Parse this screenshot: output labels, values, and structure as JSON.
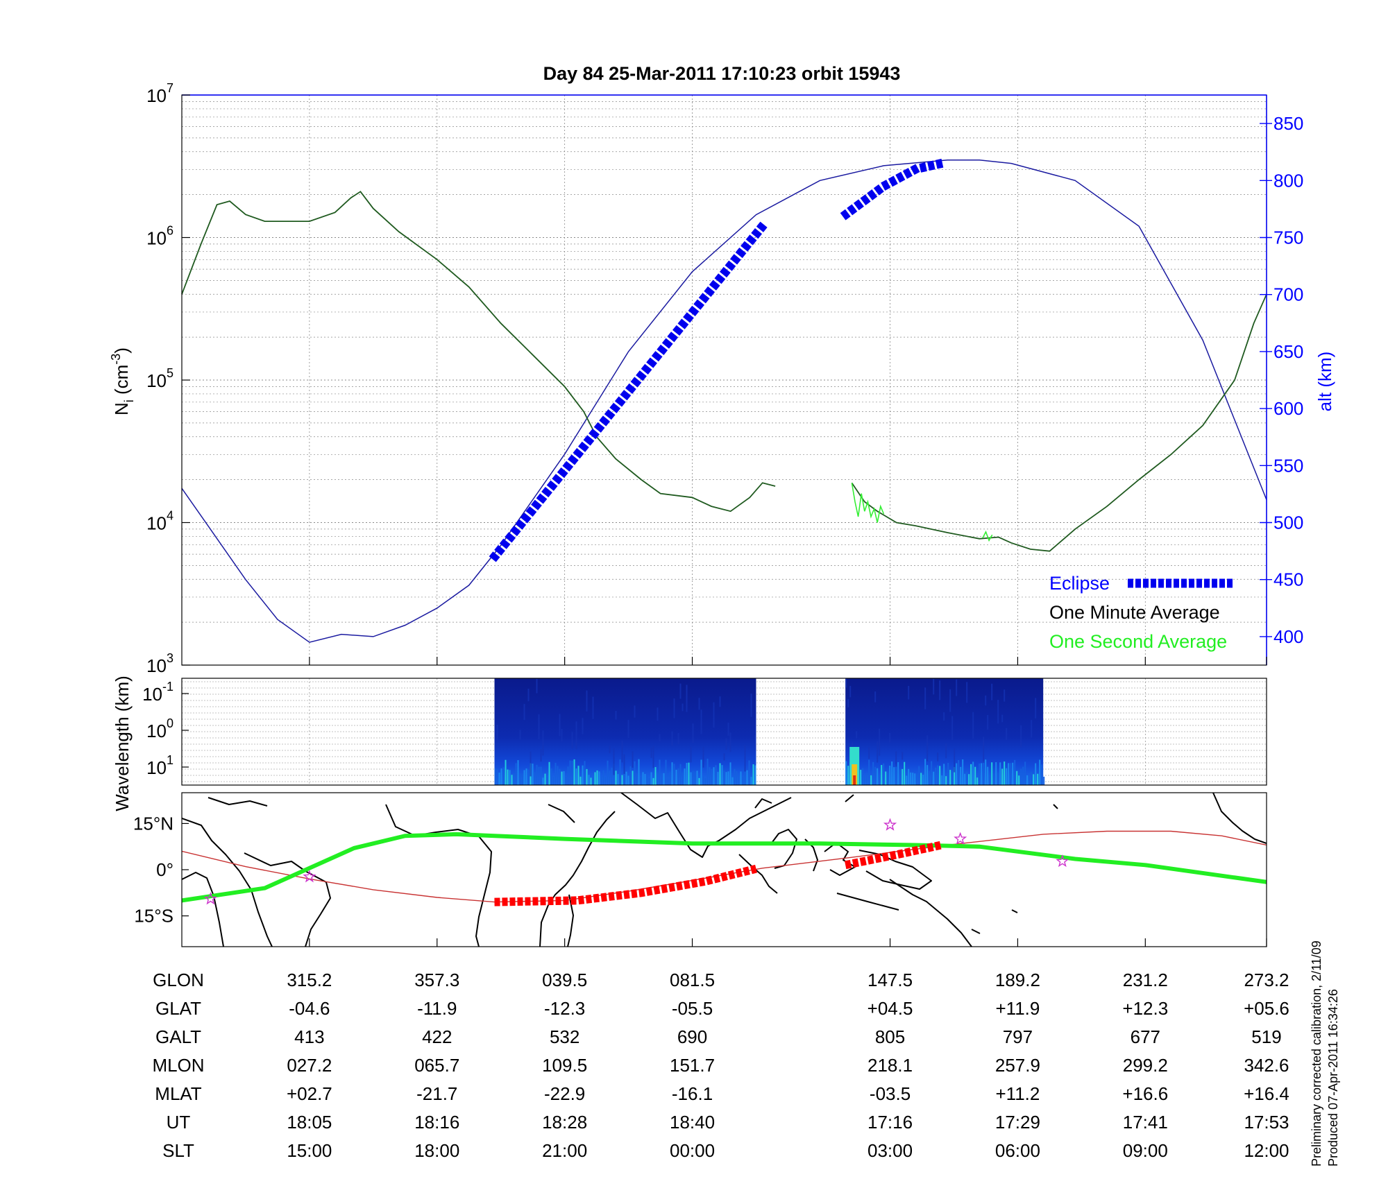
{
  "title": "Day 84  25-Mar-2011 17:10:23   orbit 15943",
  "colors": {
    "axis": "#000000",
    "grid": "#888888",
    "blue": "#0000ff",
    "alt_line": "#1a1aa0",
    "density_dark": "#1f5a1f",
    "density_light": "#33ee33",
    "eclipse": "#0000ee",
    "track_green": "#22ee22",
    "track_red": "#ff0000",
    "orbit_red": "#c83232",
    "star": "#cc33cc"
  },
  "chart_data": [
    {
      "id": "density",
      "type": "line",
      "ylabel_main": "N",
      "ylabel_sub": "i",
      "ylabel_rest": " (cm",
      "ylabel_sup": "-3",
      "ylabel_end": ")",
      "y_scale": "log",
      "ylim": [
        1000,
        10000000
      ],
      "y_ticks": [
        {
          "value": 1000,
          "base": "10",
          "exp": "3"
        },
        {
          "value": 10000,
          "base": "10",
          "exp": "4"
        },
        {
          "value": 100000,
          "base": "10",
          "exp": "5"
        },
        {
          "value": 1000000,
          "base": "10",
          "exp": "6"
        },
        {
          "value": 10000000,
          "base": "10",
          "exp": "7"
        }
      ],
      "y2label": "alt (km)",
      "y2lim": [
        375,
        875
      ],
      "y2_ticks": [
        400,
        450,
        500,
        550,
        600,
        650,
        700,
        750,
        800,
        850
      ],
      "xlim": [
        0,
        17
      ],
      "x_ticks": [
        2,
        4,
        6,
        8,
        11.1,
        13.1,
        15.1,
        17
      ],
      "grid": true,
      "series": [
        {
          "name": "One Minute Average",
          "segments": [
            [
              [
                0,
                400000
              ],
              [
                0.3,
                900000
              ],
              [
                0.55,
                1700000
              ],
              [
                0.75,
                1800000
              ],
              [
                1,
                1450000
              ],
              [
                1.3,
                1300000
              ],
              [
                2,
                1300000
              ],
              [
                2.4,
                1500000
              ],
              [
                2.65,
                1900000
              ],
              [
                2.8,
                2100000
              ],
              [
                3.0,
                1600000
              ],
              [
                3.4,
                1100000
              ],
              [
                4,
                700000
              ],
              [
                4.5,
                450000
              ],
              [
                5,
                250000
              ],
              [
                5.5,
                150000
              ],
              [
                6,
                90000
              ],
              [
                6.3,
                60000
              ],
              [
                6.5,
                40000
              ],
              [
                6.8,
                28000
              ],
              [
                7.2,
                20000
              ],
              [
                7.5,
                16000
              ],
              [
                8,
                15000
              ],
              [
                8.3,
                13000
              ],
              [
                8.6,
                12000
              ],
              [
                8.9,
                15000
              ],
              [
                9.1,
                19000
              ],
              [
                9.3,
                18000
              ]
            ],
            [
              [
                10.5,
                19000
              ],
              [
                10.7,
                14000
              ],
              [
                10.9,
                12000
              ],
              [
                11.2,
                10000
              ],
              [
                11.5,
                9500
              ],
              [
                12,
                8500
              ],
              [
                12.5,
                7700
              ],
              [
                12.8,
                7900
              ],
              [
                13,
                7200
              ],
              [
                13.3,
                6500
              ],
              [
                13.6,
                6300
              ],
              [
                14,
                9000
              ],
              [
                14.5,
                13000
              ],
              [
                15,
                20000
              ],
              [
                15.5,
                30000
              ],
              [
                16,
                48000
              ],
              [
                16.5,
                100000
              ],
              [
                16.8,
                250000
              ],
              [
                17,
                400000
              ]
            ]
          ]
        },
        {
          "name": "One Second Average",
          "segments": [
            [
              [
                10.5,
                19000
              ],
              [
                10.55,
                14000
              ],
              [
                10.6,
                11000
              ],
              [
                10.65,
                16000
              ],
              [
                10.7,
                12000
              ],
              [
                10.75,
                14000
              ],
              [
                10.8,
                11000
              ],
              [
                10.85,
                12500
              ],
              [
                10.9,
                10000
              ],
              [
                10.95,
                13000
              ],
              [
                11.0,
                11500
              ]
            ],
            [
              [
                12.55,
                7800
              ],
              [
                12.6,
                8600
              ],
              [
                12.65,
                7500
              ],
              [
                12.7,
                8200
              ]
            ]
          ]
        },
        {
          "name": "Eclipse",
          "segments": [
            [
              [
                4.9,
                470
              ],
              [
                9.1,
                760
              ]
            ],
            [
              [
                10.4,
                770
              ],
              [
                11.0,
                795
              ],
              [
                11.5,
                810
              ],
              [
                11.9,
                815
              ]
            ]
          ]
        }
      ],
      "altitude": [
        [
          0,
          530
        ],
        [
          0.5,
          490
        ],
        [
          1,
          450
        ],
        [
          1.5,
          415
        ],
        [
          2,
          395
        ],
        [
          2.5,
          402
        ],
        [
          3,
          400
        ],
        [
          3.5,
          410
        ],
        [
          4,
          425
        ],
        [
          4.5,
          445
        ],
        [
          5,
          480
        ],
        [
          6,
          560
        ],
        [
          7,
          650
        ],
        [
          8,
          720
        ],
        [
          9,
          770
        ],
        [
          10,
          800
        ],
        [
          11,
          813
        ],
        [
          12,
          818
        ],
        [
          12.5,
          818
        ],
        [
          13,
          815
        ],
        [
          14,
          800
        ],
        [
          15,
          760
        ],
        [
          16,
          660
        ],
        [
          16.5,
          590
        ],
        [
          17,
          520
        ]
      ],
      "legend": [
        {
          "label": "Eclipse",
          "color_key": "blue"
        },
        {
          "label": "One Minute Average",
          "color_key": "axis"
        },
        {
          "label": "One Second Average",
          "color_key": "track_green"
        }
      ],
      "legend_position": "bottom-right"
    },
    {
      "id": "spectrogram",
      "type": "heatmap",
      "ylabel": "Wavelength (km)",
      "y_ticks": [
        {
          "base": "10",
          "exp": "-1"
        },
        {
          "base": "10",
          "exp": "0"
        },
        {
          "base": "10",
          "exp": "1"
        }
      ],
      "data_ranges_x": [
        [
          4.9,
          9.0
        ],
        [
          10.4,
          13.5
        ]
      ],
      "grid": true
    },
    {
      "id": "map",
      "type": "line",
      "y_ticks": [
        "15°N",
        "0°",
        "15°S"
      ],
      "ylim": [
        -25,
        25
      ],
      "tracks": {
        "green": [
          [
            0,
            -10
          ],
          [
            1.3,
            -6
          ],
          [
            2.7,
            7
          ],
          [
            3.5,
            11
          ],
          [
            4.3,
            11.5
          ],
          [
            6,
            10
          ],
          [
            8,
            8.5
          ],
          [
            10,
            8.5
          ],
          [
            11.5,
            8
          ],
          [
            12.5,
            7.5
          ],
          [
            14,
            3.5
          ],
          [
            15.1,
            1.5
          ],
          [
            17,
            -4
          ]
        ],
        "orbit_red": [
          [
            0,
            6
          ],
          [
            1,
            1
          ],
          [
            2,
            -3
          ],
          [
            3,
            -6.5
          ],
          [
            4,
            -9
          ],
          [
            4.9,
            -10.5
          ],
          [
            6,
            -10
          ],
          [
            7,
            -7
          ],
          [
            8,
            -3.5
          ],
          [
            9.1,
            0.5
          ],
          [
            10.5,
            4
          ],
          [
            12,
            8
          ],
          [
            13.5,
            11.5
          ],
          [
            14.5,
            12.5
          ],
          [
            15.5,
            12.5
          ],
          [
            16.3,
            11
          ],
          [
            17,
            8
          ]
        ],
        "red_thick": [
          [
            [
              4.9,
              -10.5
            ],
            [
              6.2,
              -10
            ],
            [
              7.2,
              -7.5
            ],
            [
              8.2,
              -3.8
            ],
            [
              9.0,
              0.3
            ]
          ],
          [
            [
              10.4,
              1.5
            ],
            [
              11.3,
              5.3
            ],
            [
              11.9,
              8
            ]
          ]
        ]
      },
      "stars": [
        [
          0.45,
          -9.5
        ],
        [
          2.0,
          -2.3
        ],
        [
          11.1,
          14.5
        ],
        [
          12.2,
          10
        ],
        [
          13.8,
          2.7
        ]
      ]
    },
    {
      "id": "ephemeris",
      "type": "table",
      "rows": [
        {
          "label": "GLON",
          "values": [
            "315.2",
            "357.3",
            "039.5",
            "081.5",
            "147.5",
            "189.2",
            "231.2",
            "273.2"
          ]
        },
        {
          "label": "GLAT",
          "values": [
            "-04.6",
            "-11.9",
            "-12.3",
            "-05.5",
            "+04.5",
            "+11.9",
            "+12.3",
            "+05.6"
          ]
        },
        {
          "label": "GALT",
          "values": [
            "413",
            "422",
            "532",
            "690",
            "805",
            "797",
            "677",
            "519"
          ]
        },
        {
          "label": "MLON",
          "values": [
            "027.2",
            "065.7",
            "109.5",
            "151.7",
            "218.1",
            "257.9",
            "299.2",
            "342.6"
          ]
        },
        {
          "label": "MLAT",
          "values": [
            "+02.7",
            "-21.7",
            "-22.9",
            "-16.1",
            "-03.5",
            "+11.2",
            "+16.6",
            "+16.4"
          ]
        },
        {
          "label": "UT",
          "values": [
            "18:05",
            "18:16",
            "18:28",
            "18:40",
            "17:16",
            "17:29",
            "17:41",
            "17:53"
          ]
        },
        {
          "label": "SLT",
          "values": [
            "15:00",
            "18:00",
            "21:00",
            "00:00",
            "03:00",
            "06:00",
            "09:00",
            "12:00"
          ]
        }
      ]
    }
  ],
  "footnote": {
    "line1": "Preliminary corrected calibration, 2/11/09",
    "line2": "Produced 07-Apr-2011 16:34:26"
  }
}
